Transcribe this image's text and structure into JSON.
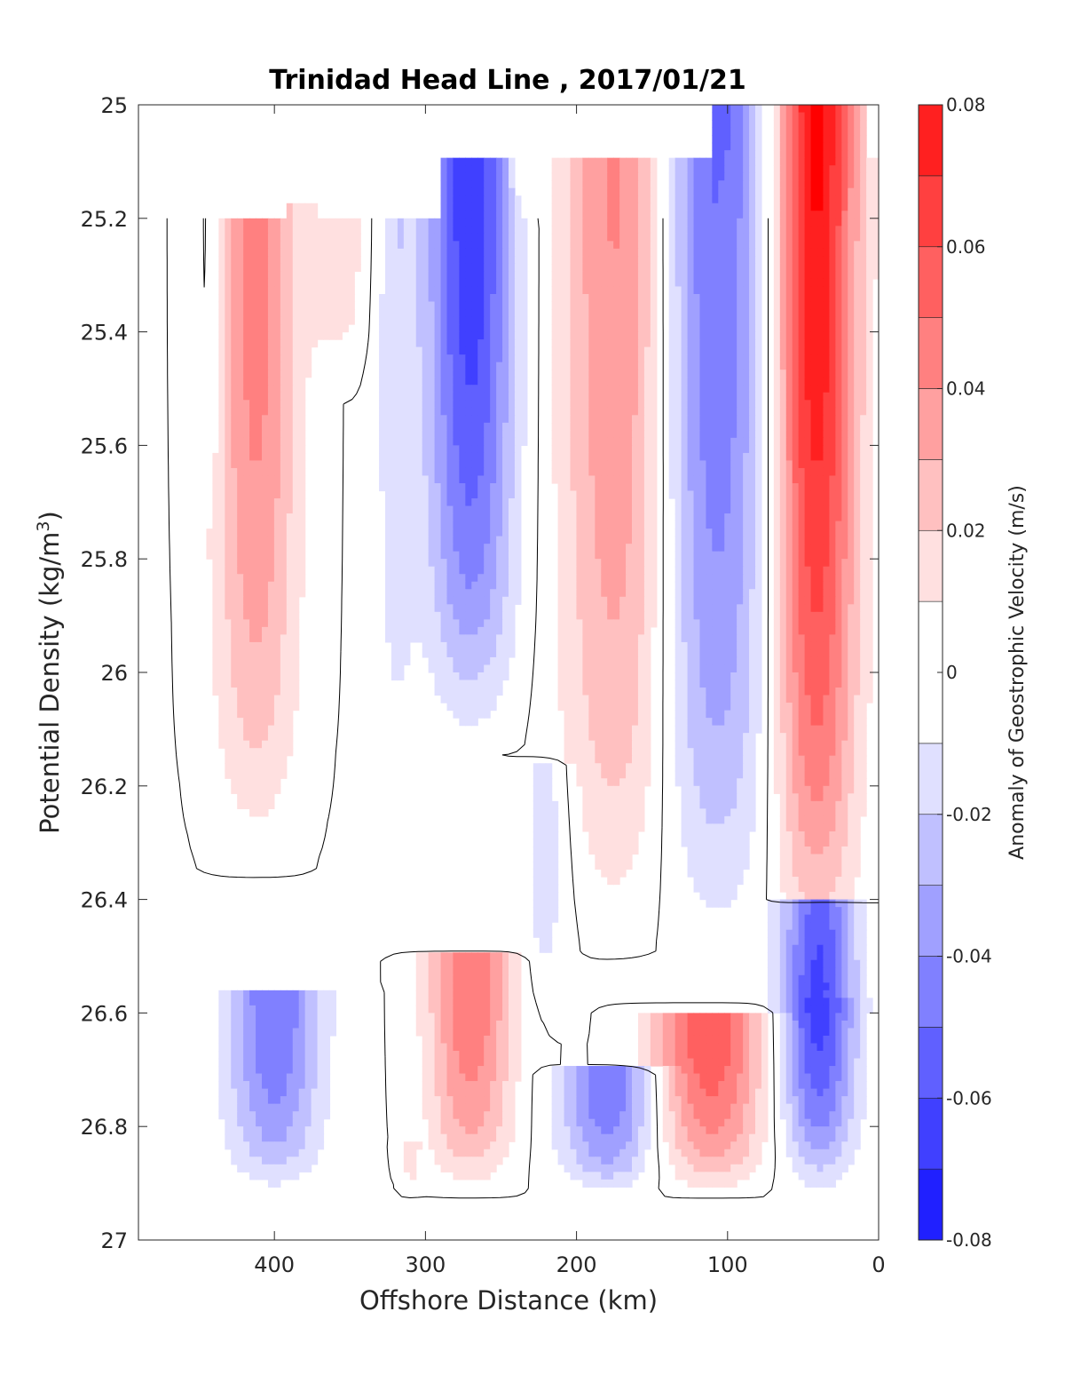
{
  "chart_data": {
    "type": "contour",
    "title": "Trinidad Head Line , 2017/01/21",
    "xlabel": "Offshore Distance (km)",
    "ylabel_main": "Potential Density (kg/m",
    "ylabel_sup": "3",
    "ylabel_close": ")",
    "colorbar_label": "Anomaly of Geostrophic Velocity (m/s)",
    "xlim": [
      490,
      0
    ],
    "x_reversed": true,
    "ylim": [
      25,
      27
    ],
    "y_reversed": true,
    "xticks": [
      "400",
      "300",
      "200",
      "100",
      "0"
    ],
    "yticks": [
      "25",
      "25.2",
      "25.4",
      "25.6",
      "25.8",
      "26",
      "26.2",
      "26.4",
      "26.6",
      "26.8",
      "27"
    ],
    "colorbar_ticks": [
      "0.08",
      "0.06",
      "0.04",
      "0.02",
      "0",
      "-0.02",
      "-0.04",
      "-0.06",
      "-0.08"
    ],
    "colorbar_range": [
      -0.08,
      0.08
    ],
    "levels": [
      -0.08,
      -0.07,
      -0.06,
      -0.05,
      -0.04,
      -0.03,
      -0.02,
      -0.01,
      0.01,
      0.02,
      0.03,
      0.04,
      0.05,
      0.06,
      0.07,
      0.08
    ],
    "colors": [
      "#0000ff",
      "#2020ff",
      "#4040ff",
      "#6060ff",
      "#8080ff",
      "#a0a0ff",
      "#c0c0ff",
      "#e0e0ff",
      "#ffffff",
      "#ffe0e0",
      "#ffc0c0",
      "#ffa0a0",
      "#ff8080",
      "#ff6060",
      "#ff4040",
      "#ff2020",
      "#ff0000"
    ],
    "features": [
      {
        "x": 412,
        "xhw": 36,
        "y0": 25.2,
        "y1": 26.33,
        "amp": 0.045
      },
      {
        "x": 442,
        "xhw": 10,
        "y0": 25.2,
        "y1": 25.72,
        "amp": -0.013
      },
      {
        "x": 356,
        "xhw": 25,
        "y0": 25.1,
        "y1": 25.5,
        "amp": 0.018
      },
      {
        "x": 320,
        "xhw": 18,
        "y0": 25.2,
        "y1": 26.28,
        "amp": -0.016
      },
      {
        "x": 270,
        "xhw": 38,
        "y0": 25.1,
        "y1": 26.12,
        "amp": -0.068
      },
      {
        "x": 235,
        "xhw": 15,
        "y0": 25.08,
        "y1": 25.2,
        "amp": 0.015
      },
      {
        "x": 170,
        "xhw": 52,
        "y0": 25.1,
        "y1": 26.48,
        "amp": 0.045
      },
      {
        "x": 110,
        "xhw": 52,
        "y0": 25.0,
        "y1": 26.5,
        "amp": -0.055
      },
      {
        "x": 42,
        "xhw": 36,
        "y0": 24.92,
        "y1": 26.55,
        "amp": 0.085
      },
      {
        "x": 400,
        "xhw": 40,
        "y0": 26.58,
        "y1": 26.92,
        "amp": -0.05
      },
      {
        "x": 270,
        "xhw": 36,
        "y0": 26.52,
        "y1": 26.92,
        "amp": 0.05
      },
      {
        "x": 220,
        "xhw": 22,
        "y0": 26.18,
        "y1": 26.62,
        "amp": -0.018
      },
      {
        "x": 310,
        "xhw": 8,
        "y0": 26.85,
        "y1": 26.92,
        "amp": 0.012
      },
      {
        "x": 178,
        "xhw": 42,
        "y0": 26.72,
        "y1": 26.92,
        "amp": -0.05
      },
      {
        "x": 112,
        "xhw": 48,
        "y0": 26.62,
        "y1": 26.92,
        "amp": 0.058
      },
      {
        "x": 40,
        "xhw": 32,
        "y0": 26.42,
        "y1": 26.92,
        "amp": -0.075
      }
    ]
  }
}
